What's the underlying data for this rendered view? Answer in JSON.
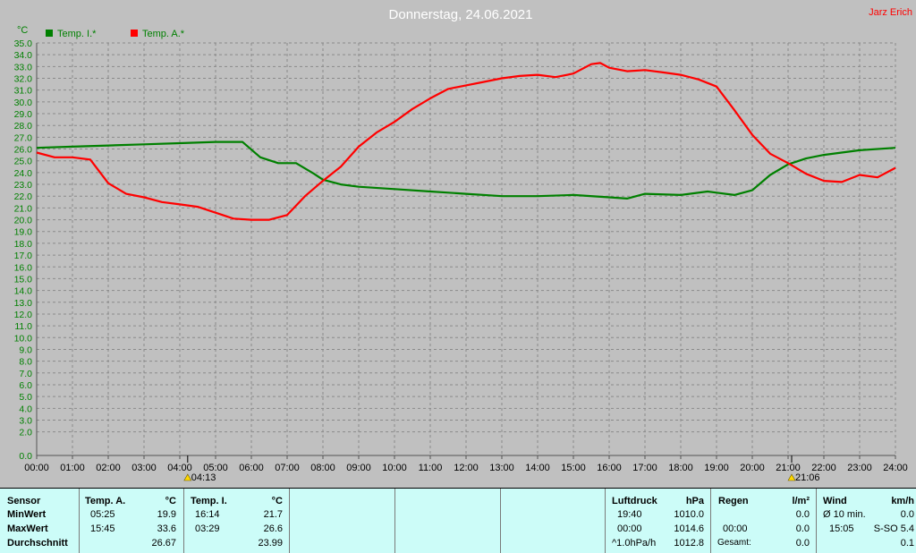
{
  "header": {
    "title": "Donnerstag, 24.06.2021",
    "author": "Jarz Erich"
  },
  "colors": {
    "background": "#c0c0c0",
    "grid": "#8a8a8a",
    "green_series": "#008000",
    "red_series": "#ff0000",
    "axis_text": "#008000",
    "title_text": "#ffffff",
    "author_text": "#ff0000",
    "table_bg": "#ccfcf8"
  },
  "chart_data": {
    "type": "line",
    "title": "Donnerstag, 24.06.2021",
    "ylabel": "°C",
    "xlabel": "",
    "ylim": [
      0.0,
      35.0
    ],
    "yticks": [
      "0.0",
      "2.0",
      "3.0",
      "4.0",
      "5.0",
      "6.0",
      "7.0",
      "8.0",
      "9.0",
      "10.0",
      "11.0",
      "12.0",
      "13.0",
      "14.0",
      "15.0",
      "16.0",
      "17.0",
      "18.0",
      "19.0",
      "20.0",
      "21.0",
      "22.0",
      "23.0",
      "24.0",
      "25.0",
      "26.0",
      "27.0",
      "28.0",
      "29.0",
      "30.0",
      "31.0",
      "32.0",
      "33.0",
      "34.0",
      "35.0"
    ],
    "xlim": [
      0,
      24
    ],
    "xticks": [
      "00:00",
      "01:00",
      "02:00",
      "03:00",
      "04:00",
      "05:00",
      "06:00",
      "07:00",
      "08:00",
      "09:00",
      "10:00",
      "11:00",
      "12:00",
      "13:00",
      "14:00",
      "15:00",
      "16:00",
      "17:00",
      "18:00",
      "19:00",
      "20:00",
      "21:00",
      "22:00",
      "23:00",
      "24:00"
    ],
    "grid": true,
    "legend_position": "top-left",
    "markers": [
      {
        "label": "04:13",
        "x": 4.22
      },
      {
        "label": "21:06",
        "x": 21.1
      }
    ],
    "series": [
      {
        "name": "Temp. I.*",
        "color": "#008000",
        "x": [
          0,
          1,
          2,
          3,
          4,
          5,
          5.75,
          6.25,
          6.75,
          7.25,
          7.75,
          8.0,
          8.5,
          9,
          10,
          11,
          12,
          13,
          14,
          15,
          16,
          16.5,
          17,
          18,
          18.75,
          19,
          19.5,
          20,
          20.5,
          21,
          21.5,
          22,
          23,
          24
        ],
        "y": [
          26.1,
          26.2,
          26.3,
          26.4,
          26.5,
          26.6,
          26.6,
          25.3,
          24.8,
          24.8,
          23.9,
          23.4,
          23.0,
          22.8,
          22.6,
          22.4,
          22.2,
          22.0,
          22.0,
          22.1,
          21.9,
          21.8,
          22.2,
          22.1,
          22.4,
          22.3,
          22.1,
          22.5,
          23.8,
          24.7,
          25.2,
          25.5,
          25.9,
          26.1
        ]
      },
      {
        "name": "Temp. A.*",
        "color": "#ff0000",
        "x": [
          0,
          0.5,
          1,
          1.5,
          2,
          2.5,
          3,
          3.5,
          4,
          4.5,
          5,
          5.5,
          6,
          6.5,
          7,
          7.5,
          8,
          8.5,
          9,
          9.5,
          10,
          10.5,
          11,
          11.5,
          12,
          12.5,
          13,
          13.5,
          14,
          14.5,
          15,
          15.5,
          15.75,
          16,
          16.5,
          17,
          17.5,
          18,
          18.5,
          19,
          19.5,
          20,
          20.5,
          21,
          21.5,
          22,
          22.5,
          23,
          23.5,
          24
        ],
        "y": [
          25.7,
          25.3,
          25.3,
          25.1,
          23.1,
          22.2,
          21.9,
          21.5,
          21.3,
          21.1,
          20.6,
          20.1,
          20.0,
          20.0,
          20.4,
          22.0,
          23.3,
          24.5,
          26.2,
          27.4,
          28.3,
          29.4,
          30.3,
          31.1,
          31.4,
          31.7,
          32.0,
          32.2,
          32.3,
          32.1,
          32.4,
          33.2,
          33.3,
          32.9,
          32.6,
          32.7,
          32.5,
          32.3,
          31.9,
          31.3,
          29.3,
          27.2,
          25.6,
          24.8,
          23.9,
          23.3,
          23.2,
          23.8,
          23.6,
          24.4
        ]
      }
    ]
  },
  "summary_table": {
    "sensor": {
      "header": "Sensor",
      "rows": [
        "MinWert",
        "MaxWert",
        "Durchschnitt"
      ]
    },
    "temp_a": {
      "header": "Temp. A.",
      "unit": "°C",
      "min_time": "05:25",
      "min_val": "19.9",
      "max_time": "15:45",
      "max_val": "33.6",
      "avg": "26.67"
    },
    "temp_i": {
      "header": "Temp. I.",
      "unit": "°C",
      "min_time": "16:14",
      "min_val": "21.7",
      "max_time": "03:29",
      "max_val": "26.6",
      "avg": "23.99"
    },
    "pressure": {
      "header": "Luftdruck",
      "unit": "hPa",
      "min_time": "19:40",
      "min_val": "1010.0",
      "max_time": "00:00",
      "max_val": "1014.6",
      "trend_label": "^1.0hPa/h",
      "trend_val": "1012.8"
    },
    "rain": {
      "header": "Regen",
      "unit": "l/m²",
      "row1_val": "0.0",
      "max_time": "00:00",
      "max_val": "0.0",
      "total_label": "Gesamt:",
      "total_val": "0.0"
    },
    "wind": {
      "header": "Wind",
      "unit": "km/h",
      "avg_label": "Ø 10 min.",
      "avg_val": "0.0",
      "max_time": "15:05",
      "max_val": "S-SO 5.4",
      "last_val": "0.1"
    }
  }
}
